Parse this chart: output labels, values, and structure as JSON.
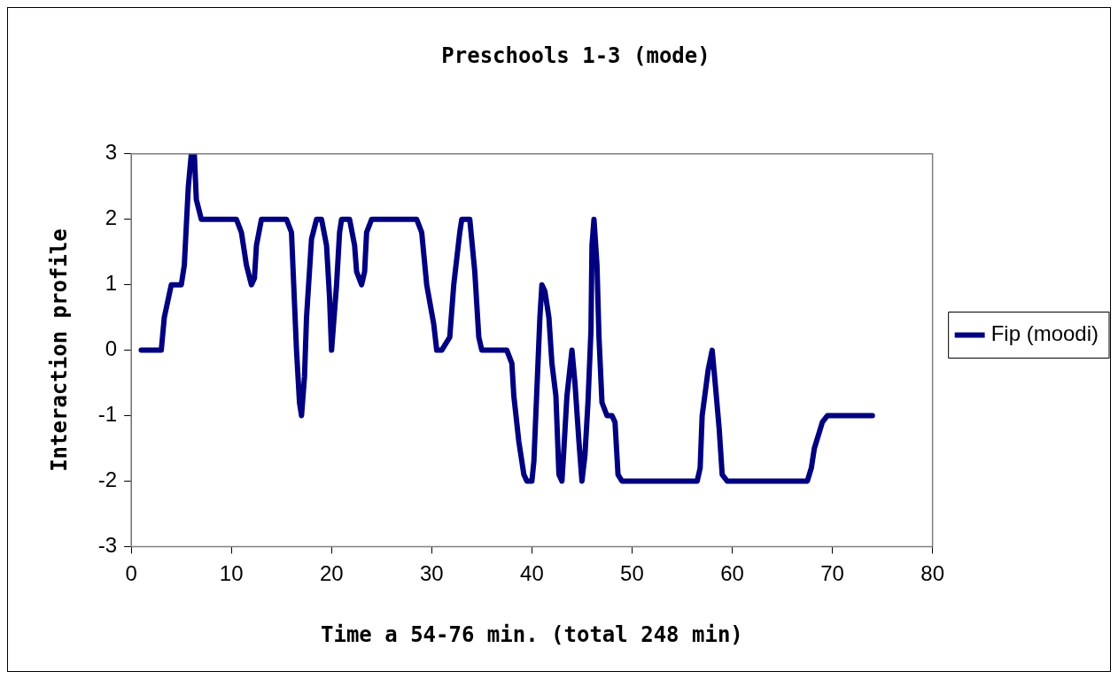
{
  "chart_data": {
    "type": "line",
    "title": "Preschools 1-3 (mode)",
    "xlabel": "Time a 54-76 min. (total 248 min)",
    "ylabel": "Interaction profile",
    "xlim": [
      0,
      80
    ],
    "xticks": [
      0,
      10,
      20,
      30,
      40,
      50,
      60,
      70,
      80
    ],
    "ylim": [
      -3,
      3
    ],
    "yticks": [
      -3,
      -2,
      -1,
      0,
      1,
      2,
      3
    ],
    "grid": false,
    "legend": "right",
    "marker": "none",
    "line_style": "solid",
    "series": [
      {
        "name": "Fip (moodi)",
        "color": "#000080",
        "x": [
          1,
          2.5,
          3,
          3.3,
          4,
          5,
          5.3,
          5.7,
          6,
          6.3,
          6.5,
          7,
          10.5,
          11,
          11.5,
          12,
          12.3,
          12.5,
          13,
          15.5,
          16,
          16.5,
          16.8,
          17,
          17.3,
          17.5,
          18,
          18.5,
          19,
          19.5,
          19.8,
          20,
          20.5,
          20.8,
          21,
          21.8,
          22.3,
          22.5,
          23,
          23.3,
          23.5,
          24,
          28.5,
          29,
          29.5,
          30.2,
          30.5,
          31,
          31.8,
          32.2,
          32.8,
          33,
          33.8,
          34.3,
          34.7,
          35,
          37.5,
          38,
          38.2,
          38.7,
          39.2,
          39.5,
          40,
          40.2,
          40.5,
          40.8,
          41,
          41.3,
          41.7,
          42,
          42.4,
          42.7,
          43,
          43.2,
          43.5,
          44,
          44.3,
          44.7,
          45,
          45.3,
          45.6,
          45.9,
          46,
          46.2,
          46.5,
          46.7,
          47,
          47.5,
          48,
          48.3,
          48.6,
          49,
          56.5,
          56.8,
          57,
          57.6,
          58,
          58.3,
          58.7,
          59,
          59.5,
          67.5,
          67.9,
          68.2,
          68.8,
          69,
          69.5,
          74
        ],
        "values": [
          0,
          0,
          0,
          0.5,
          1,
          1,
          1.3,
          2.5,
          3,
          3,
          2.3,
          2,
          2,
          1.8,
          1.3,
          1,
          1.1,
          1.6,
          2,
          2,
          1.8,
          0,
          -0.8,
          -1,
          -0.4,
          0.5,
          1.7,
          2,
          2,
          1.6,
          0.8,
          0,
          1,
          1.8,
          2,
          2,
          1.6,
          1.2,
          1,
          1.2,
          1.8,
          2,
          2,
          1.8,
          1,
          0.4,
          0,
          0,
          0.2,
          1,
          1.8,
          2,
          2,
          1.2,
          0.2,
          0,
          0,
          -0.2,
          -0.7,
          -1.4,
          -1.9,
          -2,
          -2,
          -1.7,
          -0.6,
          0.5,
          1,
          0.9,
          0.5,
          -0.2,
          -0.7,
          -1.9,
          -2,
          -1.5,
          -0.7,
          0,
          -0.5,
          -1.4,
          -2,
          -1.6,
          -0.8,
          0.3,
          1.6,
          2,
          1.3,
          0.2,
          -0.8,
          -1,
          -1,
          -1.1,
          -1.9,
          -2,
          -2,
          -1.8,
          -1,
          -0.3,
          0,
          -0.5,
          -1.2,
          -1.9,
          -2,
          -2,
          -1.8,
          -1.5,
          -1.2,
          -1.1,
          -1,
          -1
        ]
      }
    ]
  }
}
